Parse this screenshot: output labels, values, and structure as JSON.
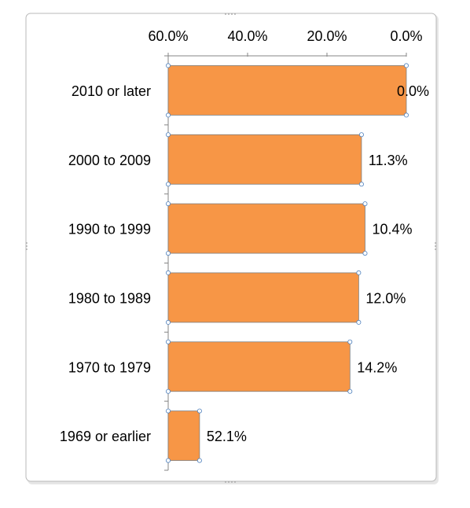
{
  "chart_data": {
    "type": "bar",
    "orientation": "horizontal",
    "x_axis_reversed": true,
    "x_axis_position": "top",
    "categories": [
      "2010 or later",
      "2000 to 2009",
      "1990 to 1999",
      "1980 to 1989",
      "1970 to 1979",
      "1969 or earlier"
    ],
    "values": [
      0.0,
      11.3,
      10.4,
      12.0,
      14.2,
      52.1
    ],
    "value_labels": [
      "0.0%",
      "11.3%",
      "10.4%",
      "12.0%",
      "14.2%",
      "52.1%"
    ],
    "xlim": [
      0,
      60
    ],
    "ticks": [
      60,
      40,
      20,
      0
    ],
    "tick_labels": [
      "60.0%",
      "40.0%",
      "20.0%",
      "0.0%"
    ],
    "bar_color": "#F79646",
    "bar_edge_color": "#7F7F7F",
    "grid": false,
    "title": "",
    "xlabel": "",
    "ylabel": ""
  }
}
